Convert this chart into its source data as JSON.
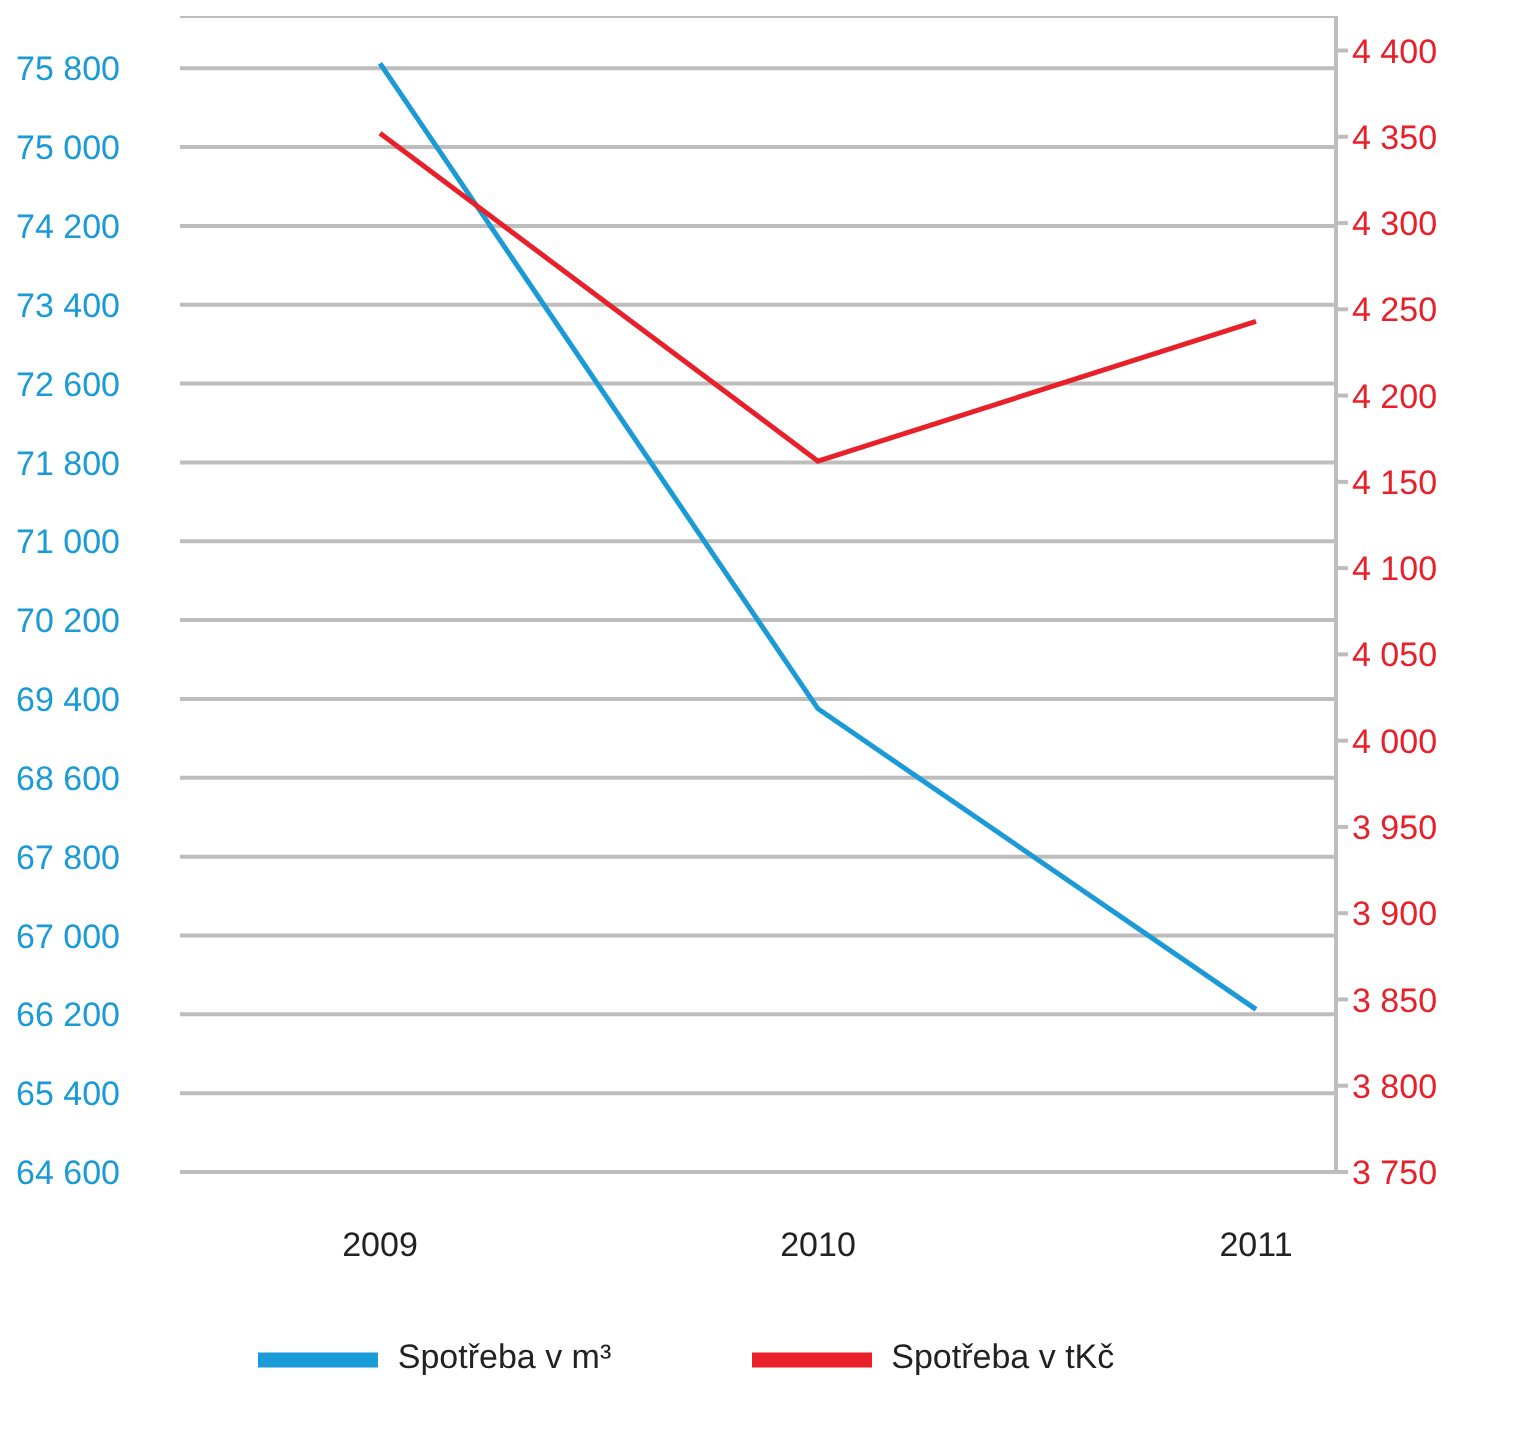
{
  "chart_data": {
    "type": "line",
    "categories": [
      "2009",
      "2010",
      "2011"
    ],
    "series": [
      {
        "name": "Spotřeba v m³",
        "color": "#1a9ad6",
        "values": [
          75850,
          69300,
          66250
        ]
      },
      {
        "name": "Spotřeba v tKč",
        "color": "#e8202a",
        "values": [
          4352,
          4162,
          4243
        ],
        "axis": "y2"
      }
    ],
    "ylim": [
      64600,
      76330
    ],
    "yticks": [
      64600,
      65400,
      66200,
      67000,
      67800,
      68600,
      69400,
      70200,
      71000,
      71800,
      72600,
      73400,
      74200,
      75000,
      75800
    ],
    "y2lim": [
      3750,
      4420
    ],
    "y2ticks": [
      3750,
      3800,
      3850,
      3900,
      3950,
      4000,
      4050,
      4100,
      4150,
      4200,
      4250,
      4300,
      4350,
      4400
    ],
    "grid": "y",
    "legend": "bottom",
    "marker": "none",
    "line_style": "solid"
  }
}
